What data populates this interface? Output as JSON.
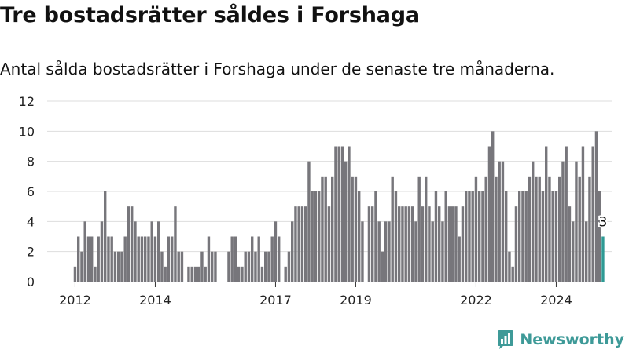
{
  "title": "Tre bostadsrätter såldes i Forshaga",
  "subtitle": "Antal sålda bostadsrätter i Forshaga under de senaste tre månaderna.",
  "brand": {
    "name": "Newsworthy",
    "color": "#3e9a98"
  },
  "colors": {
    "bar": "#77767b",
    "highlight": "#2e9a94",
    "grid": "#dddddd",
    "axis": "#333333"
  },
  "chart_data": {
    "type": "bar",
    "start_month": "2011-12",
    "values": [
      0,
      1,
      3,
      2,
      4,
      3,
      3,
      1,
      3,
      4,
      6,
      3,
      3,
      2,
      2,
      2,
      3,
      5,
      5,
      4,
      3,
      3,
      3,
      3,
      4,
      3,
      4,
      2,
      1,
      3,
      3,
      5,
      2,
      2,
      0,
      1,
      1,
      1,
      1,
      2,
      1,
      3,
      2,
      2,
      0,
      0,
      0,
      2,
      3,
      3,
      1,
      1,
      2,
      2,
      3,
      2,
      3,
      1,
      2,
      2,
      3,
      4,
      3,
      0,
      1,
      2,
      4,
      5,
      5,
      5,
      5,
      8,
      6,
      6,
      6,
      7,
      7,
      5,
      7,
      9,
      9,
      9,
      8,
      9,
      7,
      7,
      6,
      4,
      0,
      5,
      5,
      6,
      4,
      2,
      4,
      4,
      7,
      6,
      5,
      5,
      5,
      5,
      5,
      4,
      7,
      5,
      7,
      5,
      4,
      6,
      5,
      4,
      6,
      5,
      5,
      5,
      3,
      5,
      6,
      6,
      6,
      7,
      6,
      6,
      7,
      9,
      10,
      7,
      8,
      8,
      6,
      2,
      1,
      5,
      6,
      6,
      6,
      7,
      8,
      7,
      7,
      6,
      9,
      7,
      6,
      6,
      7,
      8,
      9,
      5,
      4,
      8,
      7,
      9,
      4,
      7,
      9,
      10,
      6,
      3
    ],
    "highlight_last": true,
    "highlight_label": "3",
    "x_ticks": [
      "2012",
      "2014",
      "2017",
      "2019",
      "2022",
      "2024"
    ],
    "y_ticks": [
      0,
      2,
      4,
      6,
      8,
      10,
      12
    ],
    "ylim": [
      0,
      12
    ],
    "grid": true
  }
}
